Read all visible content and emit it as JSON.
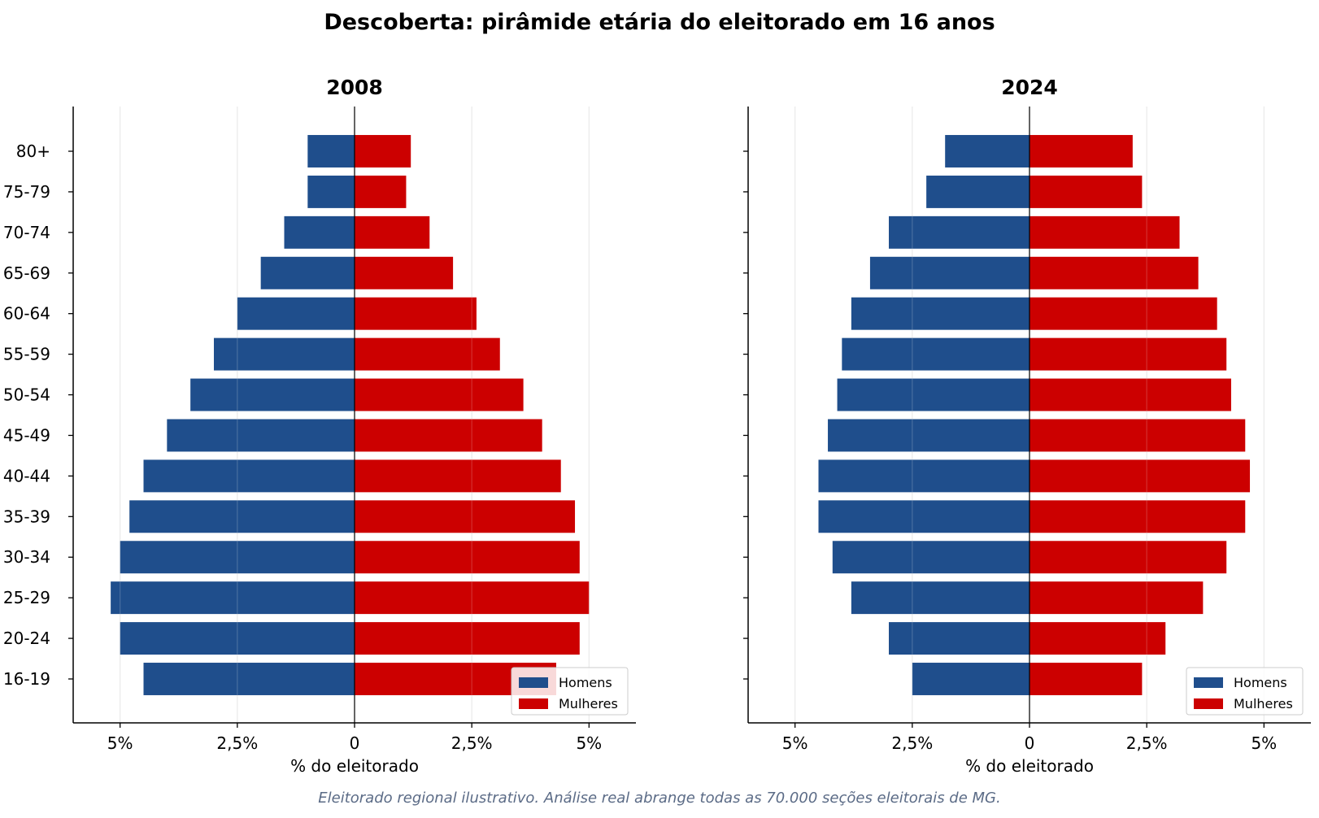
{
  "title": "Descoberta: pirâmide etária do eleitorado em 16 anos",
  "footnote": "Eleitorado regional ilustrativo. Análise real abrange todas as 70.000 seções eleitorais de MG.",
  "colors": {
    "men": "#1f4e8c",
    "women": "#cc0000",
    "grid": "#e6e6e6",
    "axis": "#000000",
    "footnote": "#5b6b86"
  },
  "chart_data": [
    {
      "type": "bar",
      "orientation": "horizontal-pyramid",
      "title": "2008",
      "xlabel": "% do eleitorado",
      "xlim": [
        -6,
        6
      ],
      "xticks": [
        {
          "value": -5,
          "label": "5%"
        },
        {
          "value": -2.5,
          "label": "2,5%"
        },
        {
          "value": 0,
          "label": "0"
        },
        {
          "value": 2.5,
          "label": "2,5%"
        },
        {
          "value": 5,
          "label": "5%"
        }
      ],
      "grid": true,
      "legend": "lower-right",
      "categories": [
        "16-19",
        "20-24",
        "25-29",
        "30-34",
        "35-39",
        "40-44",
        "45-49",
        "50-54",
        "55-59",
        "60-64",
        "65-69",
        "70-74",
        "75-79",
        "80+"
      ],
      "series": [
        {
          "name": "Homens",
          "color": "#1f4e8c",
          "values": [
            -4.5,
            -5.0,
            -5.2,
            -5.0,
            -4.8,
            -4.5,
            -4.0,
            -3.5,
            -3.0,
            -2.5,
            -2.0,
            -1.5,
            -1.0,
            -1.0
          ]
        },
        {
          "name": "Mulheres",
          "color": "#cc0000",
          "values": [
            4.3,
            4.8,
            5.0,
            4.8,
            4.7,
            4.4,
            4.0,
            3.6,
            3.1,
            2.6,
            2.1,
            1.6,
            1.1,
            1.2
          ]
        }
      ]
    },
    {
      "type": "bar",
      "orientation": "horizontal-pyramid",
      "title": "2024",
      "xlabel": "% do eleitorado",
      "xlim": [
        -6,
        6
      ],
      "xticks": [
        {
          "value": -5,
          "label": "5%"
        },
        {
          "value": -2.5,
          "label": "2,5%"
        },
        {
          "value": 0,
          "label": "0"
        },
        {
          "value": 2.5,
          "label": "2,5%"
        },
        {
          "value": 5,
          "label": "5%"
        }
      ],
      "grid": true,
      "legend": "lower-right",
      "categories": [
        "16-19",
        "20-24",
        "25-29",
        "30-34",
        "35-39",
        "40-44",
        "45-49",
        "50-54",
        "55-59",
        "60-64",
        "65-69",
        "70-74",
        "75-79",
        "80+"
      ],
      "series": [
        {
          "name": "Homens",
          "color": "#1f4e8c",
          "values": [
            -2.5,
            -3.0,
            -3.8,
            -4.2,
            -4.5,
            -4.5,
            -4.3,
            -4.1,
            -4.0,
            -3.8,
            -3.4,
            -3.0,
            -2.2,
            -1.8
          ]
        },
        {
          "name": "Mulheres",
          "color": "#cc0000",
          "values": [
            2.4,
            2.9,
            3.7,
            4.2,
            4.6,
            4.7,
            4.6,
            4.3,
            4.2,
            4.0,
            3.6,
            3.2,
            2.4,
            2.2
          ]
        }
      ]
    }
  ]
}
